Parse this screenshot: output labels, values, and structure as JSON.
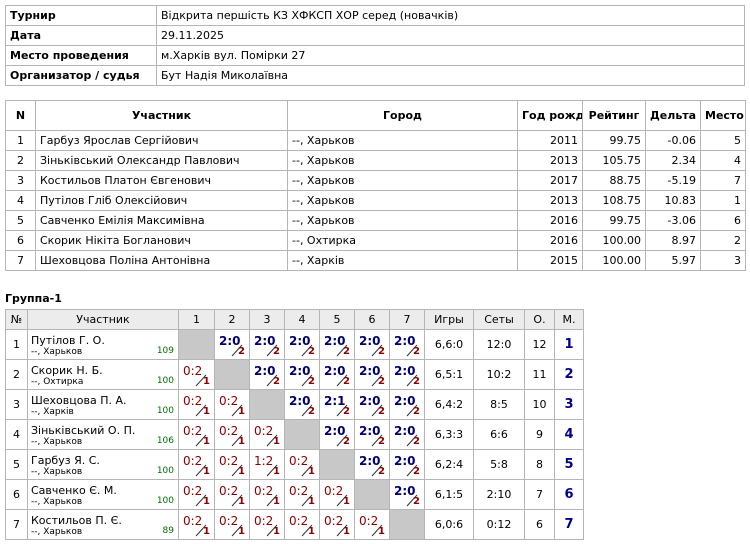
{
  "info": [
    {
      "label": "Турнир",
      "value": "Відкрита першість КЗ ХФКСП  ХОР серед (новачків)"
    },
    {
      "label": "Дата",
      "value": "29.11.2025"
    },
    {
      "label": "Место проведения",
      "value": "м.Харків вул. Помірки 27"
    },
    {
      "label": "Организатор / судья",
      "value": "Бут Надія Миколаївна"
    }
  ],
  "participants": {
    "columns": [
      "N",
      "Участник",
      "Город",
      "Год рожд.",
      "Рейтинг",
      "Дельта",
      "Место"
    ],
    "rows": [
      [
        1,
        "Гарбуз Ярослав Сергійович",
        "--, Харьков",
        2011,
        "99.75",
        "-0.06",
        5
      ],
      [
        2,
        "Зіньківський Олександр Павлович",
        "--, Харьков",
        2013,
        "105.75",
        "2.34",
        4
      ],
      [
        3,
        "Костильов Платон Євгенович",
        "--, Харьков",
        2017,
        "88.75",
        "-5.19",
        7
      ],
      [
        4,
        "Путілов Гліб Олексійович",
        "--, Харьков",
        2013,
        "108.75",
        "10.83",
        1
      ],
      [
        5,
        "Савченко Емілія Максимівна",
        "--, Харьков",
        2016,
        "99.75",
        "-3.06",
        6
      ],
      [
        6,
        "Скорик Нікіта Богланович",
        "--, Охтирка",
        2016,
        "100.00",
        "8.97",
        2
      ],
      [
        7,
        "Шеховцова Поліна Антонівна",
        "--, Харків",
        2015,
        "100.00",
        "5.97",
        3
      ]
    ]
  },
  "group": {
    "title": "Группа-1",
    "columns": [
      "№",
      "Участник",
      "1",
      "2",
      "3",
      "4",
      "5",
      "6",
      "7",
      "Игры",
      "Сеты",
      "О.",
      "М."
    ],
    "rows": [
      {
        "n": 1,
        "name": "Путілов Г. О.",
        "city": "--, Харьков",
        "rating": 109,
        "results": [
          null,
          {
            "score": "2:0",
            "points": 2
          },
          {
            "score": "2:0",
            "points": 2
          },
          {
            "score": "2:0",
            "points": 2
          },
          {
            "score": "2:0",
            "points": 2
          },
          {
            "score": "2:0",
            "points": 2
          },
          {
            "score": "2:0",
            "points": 2
          }
        ],
        "games": "6,6:0",
        "sets": "12:0",
        "points": 12,
        "place": 1
      },
      {
        "n": 2,
        "name": "Скорик Н. Б.",
        "city": "--, Охтирка",
        "rating": 100,
        "results": [
          {
            "score": "0:2",
            "points": 1
          },
          null,
          {
            "score": "2:0",
            "points": 2
          },
          {
            "score": "2:0",
            "points": 2
          },
          {
            "score": "2:0",
            "points": 2
          },
          {
            "score": "2:0",
            "points": 2
          },
          {
            "score": "2:0",
            "points": 2
          }
        ],
        "games": "6,5:1",
        "sets": "10:2",
        "points": 11,
        "place": 2
      },
      {
        "n": 3,
        "name": "Шеховцова П. А.",
        "city": "--, Харків",
        "rating": 100,
        "results": [
          {
            "score": "0:2",
            "points": 1
          },
          {
            "score": "0:2",
            "points": 1
          },
          null,
          {
            "score": "2:0",
            "points": 2
          },
          {
            "score": "2:1",
            "points": 2
          },
          {
            "score": "2:0",
            "points": 2
          },
          {
            "score": "2:0",
            "points": 2
          }
        ],
        "games": "6,4:2",
        "sets": "8:5",
        "points": 10,
        "place": 3
      },
      {
        "n": 4,
        "name": "Зіньківський О. П.",
        "city": "--, Харьков",
        "rating": 106,
        "results": [
          {
            "score": "0:2",
            "points": 1
          },
          {
            "score": "0:2",
            "points": 1
          },
          {
            "score": "0:2",
            "points": 1
          },
          null,
          {
            "score": "2:0",
            "points": 2
          },
          {
            "score": "2:0",
            "points": 2
          },
          {
            "score": "2:0",
            "points": 2
          }
        ],
        "games": "6,3:3",
        "sets": "6:6",
        "points": 9,
        "place": 4
      },
      {
        "n": 5,
        "name": "Гарбуз Я. С.",
        "city": "--, Харьков",
        "rating": 100,
        "results": [
          {
            "score": "0:2",
            "points": 1
          },
          {
            "score": "0:2",
            "points": 1
          },
          {
            "score": "1:2",
            "points": 1
          },
          {
            "score": "0:2",
            "points": 1
          },
          null,
          {
            "score": "2:0",
            "points": 2
          },
          {
            "score": "2:0",
            "points": 2
          }
        ],
        "games": "6,2:4",
        "sets": "5:8",
        "points": 8,
        "place": 5
      },
      {
        "n": 6,
        "name": "Савченко Є. М.",
        "city": "--, Харьков",
        "rating": 100,
        "results": [
          {
            "score": "0:2",
            "points": 1
          },
          {
            "score": "0:2",
            "points": 1
          },
          {
            "score": "0:2",
            "points": 1
          },
          {
            "score": "0:2",
            "points": 1
          },
          {
            "score": "0:2",
            "points": 1
          },
          null,
          {
            "score": "2:0",
            "points": 2
          }
        ],
        "games": "6,1:5",
        "sets": "2:10",
        "points": 7,
        "place": 6
      },
      {
        "n": 7,
        "name": "Костильов П. Є.",
        "city": "--, Харьков",
        "rating": 89,
        "results": [
          {
            "score": "0:2",
            "points": 1
          },
          {
            "score": "0:2",
            "points": 1
          },
          {
            "score": "0:2",
            "points": 1
          },
          {
            "score": "0:2",
            "points": 1
          },
          {
            "score": "0:2",
            "points": 1
          },
          {
            "score": "0:2",
            "points": 1
          },
          null
        ],
        "games": "6,0:6",
        "sets": "0:12",
        "points": 6,
        "place": 7
      }
    ]
  }
}
